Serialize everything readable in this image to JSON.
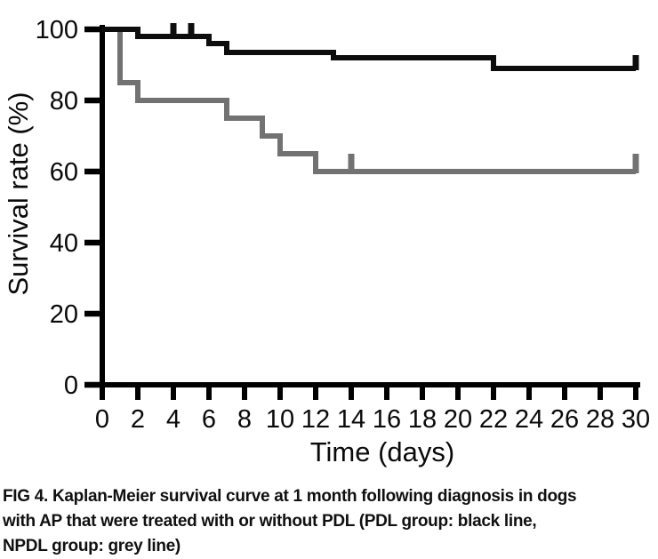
{
  "figure": {
    "caption_lines": [
      "FIG 4. Kaplan-Meier survival curve at 1 month following diagnosis in dogs",
      "with AP that were treated with or without PDL (PDL group: black line,",
      "NPDL group: grey line)"
    ]
  },
  "chart_data": {
    "type": "line",
    "variant": "kaplan-meier-step",
    "title": "",
    "xlabel": "Time (days)",
    "ylabel": "Survival rate (%)",
    "xlim": [
      0,
      30
    ],
    "ylim": [
      0,
      100
    ],
    "x_ticks": [
      0,
      2,
      4,
      6,
      8,
      10,
      12,
      14,
      16,
      18,
      20,
      22,
      24,
      26,
      28,
      30
    ],
    "y_ticks": [
      0,
      20,
      40,
      60,
      80,
      100
    ],
    "grid": false,
    "axis_color": "#000000",
    "series": [
      {
        "name": "NPDL group",
        "line_label": "grey line",
        "color": "#727272",
        "steps": [
          [
            0,
            100
          ],
          [
            1,
            85
          ],
          [
            2,
            80
          ],
          [
            7,
            75
          ],
          [
            9,
            70
          ],
          [
            10,
            65
          ],
          [
            12,
            60
          ]
        ],
        "end_day": 30,
        "final_value": 60,
        "censor_marks": [
          [
            14,
            60
          ],
          [
            30,
            60
          ]
        ],
        "censor_tick_len": 20
      },
      {
        "name": "PDL group",
        "line_label": "black line",
        "color": "#0d0d0d",
        "steps": [
          [
            0,
            100
          ],
          [
            2,
            98
          ],
          [
            6,
            96
          ],
          [
            7,
            93.5
          ],
          [
            13,
            92
          ],
          [
            22,
            89
          ]
        ],
        "end_day": 30,
        "final_value": 89,
        "censor_marks": [
          [
            4,
            98
          ],
          [
            5,
            98
          ],
          [
            30,
            89
          ]
        ],
        "censor_tick_len": 15
      }
    ]
  }
}
